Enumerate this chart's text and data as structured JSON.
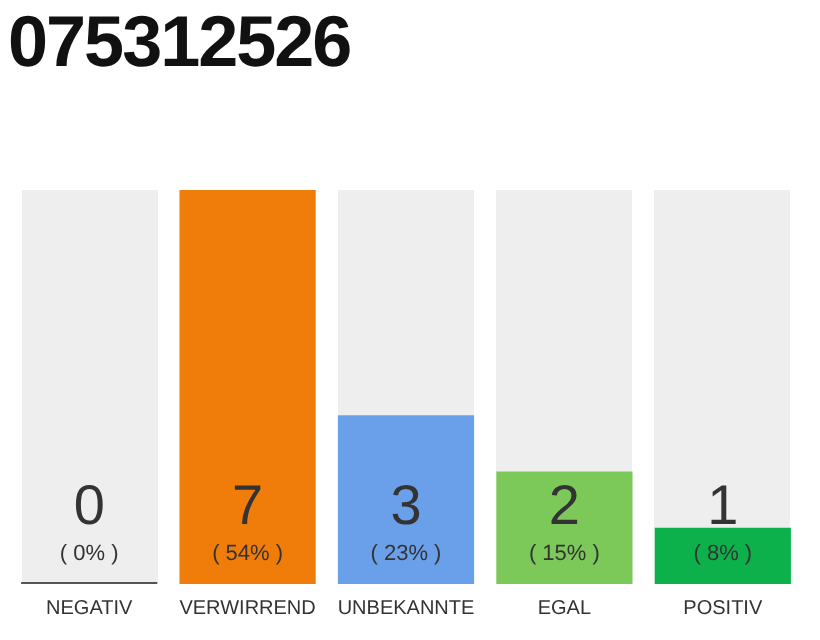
{
  "chart_data": {
    "type": "bar",
    "title": "075312526",
    "categories": [
      "NEGATIV",
      "VERWIRREND",
      "UNBEKANNTE",
      "EGAL",
      "POSITIV"
    ],
    "values": [
      0,
      7,
      3,
      2,
      1
    ],
    "colors": [
      "#555555",
      "#f07d0a",
      "#6aa0ea",
      "#7cc95a",
      "#0db14b"
    ],
    "ylim": [
      0,
      7
    ],
    "tick_labels": "x",
    "data_labels": true,
    "grid": false,
    "legend": false,
    "annotations": [
      "( 0% )",
      "( 54% )",
      "( 23% )",
      "( 15% )",
      "( 8% )"
    ]
  }
}
